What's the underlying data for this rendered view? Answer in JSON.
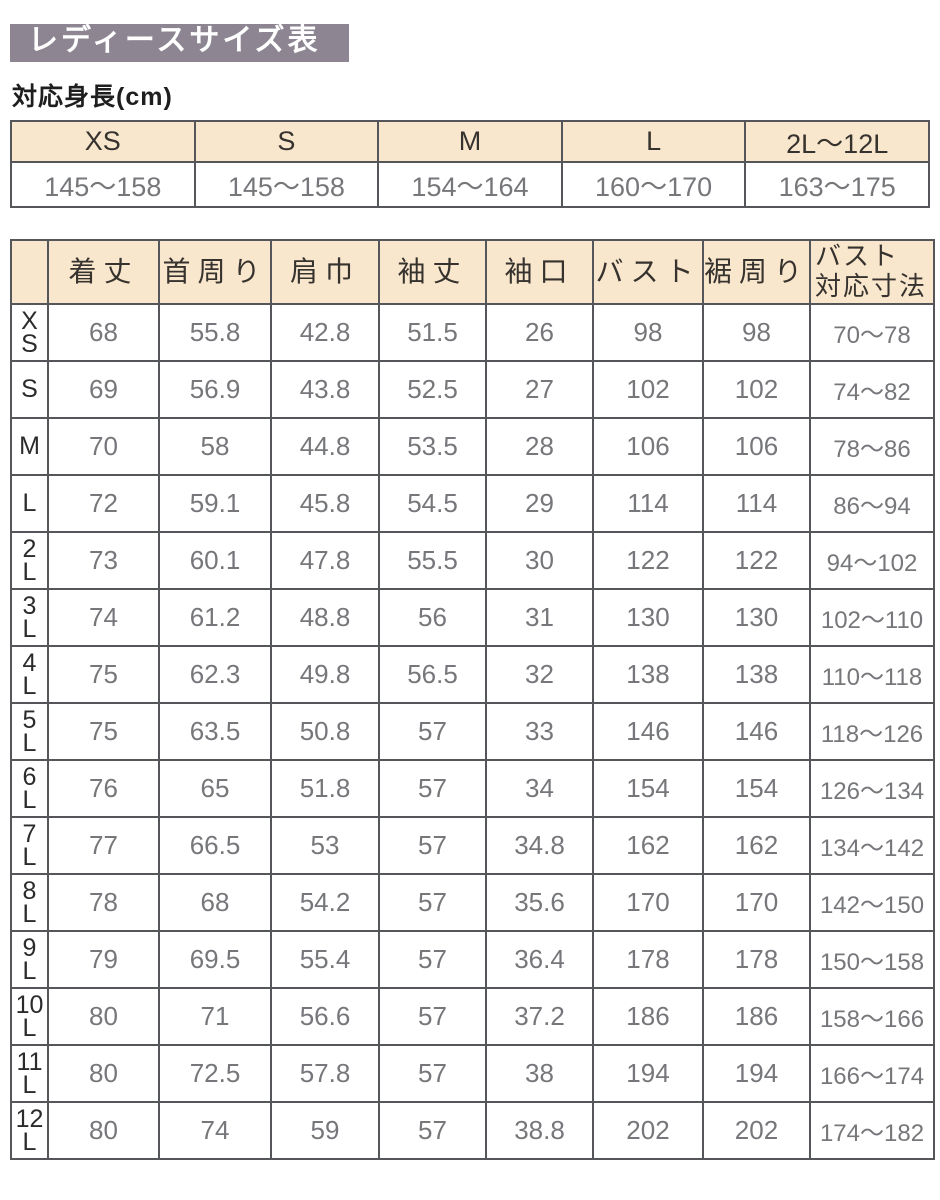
{
  "title": "レディースサイズ表",
  "colors": {
    "title_bar_bg": "#8d8692",
    "header_bg": "#f9e7cd",
    "border": "#54565a",
    "value_text": "#76777a",
    "label_text": "#2b2b2d"
  },
  "height_section": {
    "label": "対応身長(cm)",
    "columns": [
      "XS",
      "S",
      "M",
      "L",
      "2L〜12L"
    ],
    "values": [
      "145〜158",
      "145〜158",
      "154〜164",
      "160〜170",
      "163〜175"
    ]
  },
  "size_table": {
    "columns": [
      [
        "着丈"
      ],
      [
        "首周り"
      ],
      [
        "肩巾"
      ],
      [
        "袖丈"
      ],
      [
        "袖口"
      ],
      [
        "バスト"
      ],
      [
        "裾周り"
      ],
      [
        "バスト",
        "対応寸法"
      ]
    ],
    "rows": [
      {
        "size": "XS",
        "size_lines": [
          "X",
          "S"
        ],
        "values": [
          "68",
          "55.8",
          "42.8",
          "51.5",
          "26",
          "98",
          "98",
          "70〜78"
        ]
      },
      {
        "size": "S",
        "size_lines": [
          "S"
        ],
        "values": [
          "69",
          "56.9",
          "43.8",
          "52.5",
          "27",
          "102",
          "102",
          "74〜82"
        ]
      },
      {
        "size": "M",
        "size_lines": [
          "M"
        ],
        "values": [
          "70",
          "58",
          "44.8",
          "53.5",
          "28",
          "106",
          "106",
          "78〜86"
        ]
      },
      {
        "size": "L",
        "size_lines": [
          "L"
        ],
        "values": [
          "72",
          "59.1",
          "45.8",
          "54.5",
          "29",
          "114",
          "114",
          "86〜94"
        ]
      },
      {
        "size": "2L",
        "size_lines": [
          "2",
          "L"
        ],
        "values": [
          "73",
          "60.1",
          "47.8",
          "55.5",
          "30",
          "122",
          "122",
          "94〜102"
        ]
      },
      {
        "size": "3L",
        "size_lines": [
          "3",
          "L"
        ],
        "values": [
          "74",
          "61.2",
          "48.8",
          "56",
          "31",
          "130",
          "130",
          "102〜110"
        ]
      },
      {
        "size": "4L",
        "size_lines": [
          "4",
          "L"
        ],
        "values": [
          "75",
          "62.3",
          "49.8",
          "56.5",
          "32",
          "138",
          "138",
          "110〜118"
        ]
      },
      {
        "size": "5L",
        "size_lines": [
          "5",
          "L"
        ],
        "values": [
          "75",
          "63.5",
          "50.8",
          "57",
          "33",
          "146",
          "146",
          "118〜126"
        ]
      },
      {
        "size": "6L",
        "size_lines": [
          "6",
          "L"
        ],
        "values": [
          "76",
          "65",
          "51.8",
          "57",
          "34",
          "154",
          "154",
          "126〜134"
        ]
      },
      {
        "size": "7L",
        "size_lines": [
          "7",
          "L"
        ],
        "values": [
          "77",
          "66.5",
          "53",
          "57",
          "34.8",
          "162",
          "162",
          "134〜142"
        ]
      },
      {
        "size": "8L",
        "size_lines": [
          "8",
          "L"
        ],
        "values": [
          "78",
          "68",
          "54.2",
          "57",
          "35.6",
          "170",
          "170",
          "142〜150"
        ]
      },
      {
        "size": "9L",
        "size_lines": [
          "9",
          "L"
        ],
        "values": [
          "79",
          "69.5",
          "55.4",
          "57",
          "36.4",
          "178",
          "178",
          "150〜158"
        ]
      },
      {
        "size": "10L",
        "size_lines": [
          "10",
          "L"
        ],
        "values": [
          "80",
          "71",
          "56.6",
          "57",
          "37.2",
          "186",
          "186",
          "158〜166"
        ]
      },
      {
        "size": "11L",
        "size_lines": [
          "11",
          "L"
        ],
        "values": [
          "80",
          "72.5",
          "57.8",
          "57",
          "38",
          "194",
          "194",
          "166〜174"
        ]
      },
      {
        "size": "12L",
        "size_lines": [
          "12",
          "L"
        ],
        "values": [
          "80",
          "74",
          "59",
          "57",
          "38.8",
          "202",
          "202",
          "174〜182"
        ]
      }
    ]
  }
}
